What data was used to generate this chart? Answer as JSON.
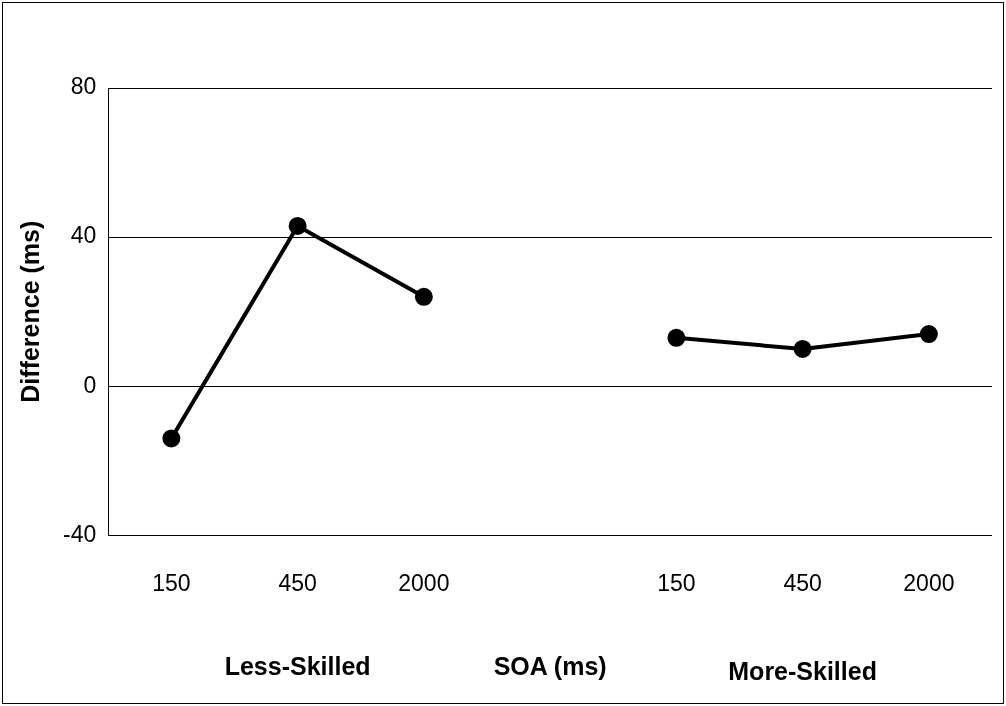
{
  "chart_data": {
    "type": "line",
    "xlabel": "SOA (ms)",
    "ylabel": "Difference (ms)",
    "categories": [
      "150",
      "450",
      "2000",
      null,
      "150",
      "450",
      "2000"
    ],
    "series": [
      {
        "color": "#000000",
        "values": [
          -14,
          43,
          24,
          null,
          null,
          null,
          null
        ]
      },
      {
        "color": "#000000",
        "values": [
          null,
          null,
          null,
          null,
          13,
          10,
          14
        ]
      }
    ],
    "ylim": [
      -40,
      80
    ],
    "yticks": [
      -40,
      0,
      40,
      80
    ],
    "grid": "y",
    "marker": "circle",
    "line_style": "solid",
    "annotations": [
      "Less-Skilled",
      "More-Skilled"
    ]
  }
}
